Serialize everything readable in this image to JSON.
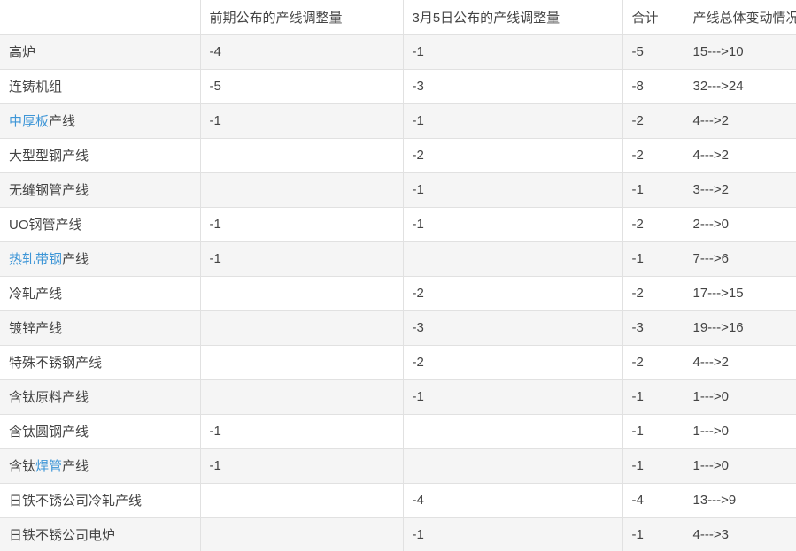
{
  "colors": {
    "link_blue": "#3e96d7",
    "row_stripe": "#f5f5f5",
    "border": "#e1e1e1",
    "text": "#444444",
    "background": "#ffffff"
  },
  "table": {
    "columns": [
      {
        "label": ""
      },
      {
        "label": "前期公布的产线调整量"
      },
      {
        "label": "3月5日公布的产线调整量"
      },
      {
        "label": "合计"
      },
      {
        "label": "产线总体变动情况"
      }
    ],
    "rows": [
      {
        "label_parts": [
          {
            "text": "高炉",
            "link": false
          }
        ],
        "values": [
          "-4",
          "-1",
          "-5",
          "15--->10"
        ]
      },
      {
        "label_parts": [
          {
            "text": "连铸机组",
            "link": false
          }
        ],
        "values": [
          "-5",
          "-3",
          "-8",
          "32--->24"
        ]
      },
      {
        "label_parts": [
          {
            "text": "中厚板",
            "link": true
          },
          {
            "text": "产线",
            "link": false
          }
        ],
        "values": [
          "-1",
          "-1",
          "-2",
          "4--->2"
        ]
      },
      {
        "label_parts": [
          {
            "text": "大型型钢产线",
            "link": false
          }
        ],
        "values": [
          "",
          "-2",
          "-2",
          "4--->2"
        ]
      },
      {
        "label_parts": [
          {
            "text": "无缝钢管产线",
            "link": false
          }
        ],
        "values": [
          "",
          "-1",
          "-1",
          "3--->2"
        ]
      },
      {
        "label_parts": [
          {
            "text": "UO钢管产线",
            "link": false
          }
        ],
        "values": [
          "-1",
          "-1",
          "-2",
          "2--->0"
        ]
      },
      {
        "label_parts": [
          {
            "text": "热轧带钢",
            "link": true
          },
          {
            "text": "产线",
            "link": false
          }
        ],
        "values": [
          "-1",
          "",
          "-1",
          "7--->6"
        ]
      },
      {
        "label_parts": [
          {
            "text": "冷轧产线",
            "link": false
          }
        ],
        "values": [
          "",
          "-2",
          "-2",
          "17--->15"
        ]
      },
      {
        "label_parts": [
          {
            "text": "镀锌产线",
            "link": false
          }
        ],
        "values": [
          "",
          "-3",
          "-3",
          "19--->16"
        ]
      },
      {
        "label_parts": [
          {
            "text": "特殊不锈钢产线",
            "link": false
          }
        ],
        "values": [
          "",
          "-2",
          "-2",
          "4--->2"
        ]
      },
      {
        "label_parts": [
          {
            "text": "含钛原料产线",
            "link": false
          }
        ],
        "values": [
          "",
          "-1",
          "-1",
          "1--->0"
        ]
      },
      {
        "label_parts": [
          {
            "text": "含钛圆钢产线",
            "link": false
          }
        ],
        "values": [
          "-1",
          "",
          "-1",
          "1--->0"
        ]
      },
      {
        "label_parts": [
          {
            "text": "含钛",
            "link": false
          },
          {
            "text": "焊管",
            "link": true
          },
          {
            "text": "产线",
            "link": false
          }
        ],
        "values": [
          "-1",
          "",
          "-1",
          "1--->0"
        ]
      },
      {
        "label_parts": [
          {
            "text": "日铁不锈公司冷轧产线",
            "link": false
          }
        ],
        "values": [
          "",
          "-4",
          "-4",
          "13--->9"
        ]
      },
      {
        "label_parts": [
          {
            "text": "日铁不锈公司电炉",
            "link": false
          }
        ],
        "values": [
          "",
          "-1",
          "-1",
          "4--->3"
        ]
      }
    ]
  }
}
